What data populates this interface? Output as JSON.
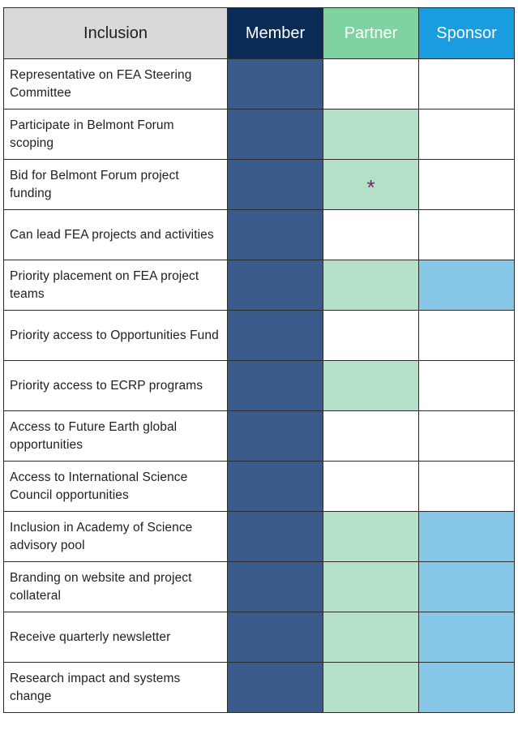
{
  "header": {
    "inclusion": "Inclusion",
    "member": "Member",
    "partner": "Partner",
    "sponsor": "Sponsor"
  },
  "colors": {
    "member_header": "#0b2b57",
    "partner_header": "#7ed3a0",
    "sponsor_header": "#1a9ce0",
    "member_fill": "#3a5a8c",
    "partner_fill": "#b4e0c8",
    "sponsor_fill": "#87c8e8"
  },
  "rows": [
    {
      "label": "Representative on FEA Steering Committee",
      "member": true,
      "partner": false,
      "sponsor": false,
      "partner_mark": ""
    },
    {
      "label": "Participate in Belmont Forum scoping",
      "member": true,
      "partner": true,
      "sponsor": false,
      "partner_mark": ""
    },
    {
      "label": "Bid for Belmont Forum project funding",
      "member": true,
      "partner": true,
      "sponsor": false,
      "partner_mark": "*"
    },
    {
      "label": "Can lead FEA projects and activities",
      "member": true,
      "partner": false,
      "sponsor": false,
      "partner_mark": ""
    },
    {
      "label": "Priority placement on FEA project teams",
      "member": true,
      "partner": true,
      "sponsor": true,
      "partner_mark": ""
    },
    {
      "label": "Priority access to Opportunities Fund",
      "member": true,
      "partner": false,
      "sponsor": false,
      "partner_mark": ""
    },
    {
      "label": "Priority access to ECRP programs",
      "member": true,
      "partner": true,
      "sponsor": false,
      "partner_mark": ""
    },
    {
      "label": "Access to Future Earth global opportunities",
      "member": true,
      "partner": false,
      "sponsor": false,
      "partner_mark": ""
    },
    {
      "label": "Access to International Science Council opportunities",
      "member": true,
      "partner": false,
      "sponsor": false,
      "partner_mark": ""
    },
    {
      "label": "Inclusion in Academy of Science advisory pool",
      "member": true,
      "partner": true,
      "sponsor": true,
      "partner_mark": ""
    },
    {
      "label": "Branding on website and project collateral",
      "member": true,
      "partner": true,
      "sponsor": true,
      "partner_mark": ""
    },
    {
      "label": "Receive quarterly newsletter",
      "member": true,
      "partner": true,
      "sponsor": true,
      "partner_mark": ""
    },
    {
      "label": "Research impact and systems change",
      "member": true,
      "partner": true,
      "sponsor": true,
      "partner_mark": ""
    }
  ]
}
